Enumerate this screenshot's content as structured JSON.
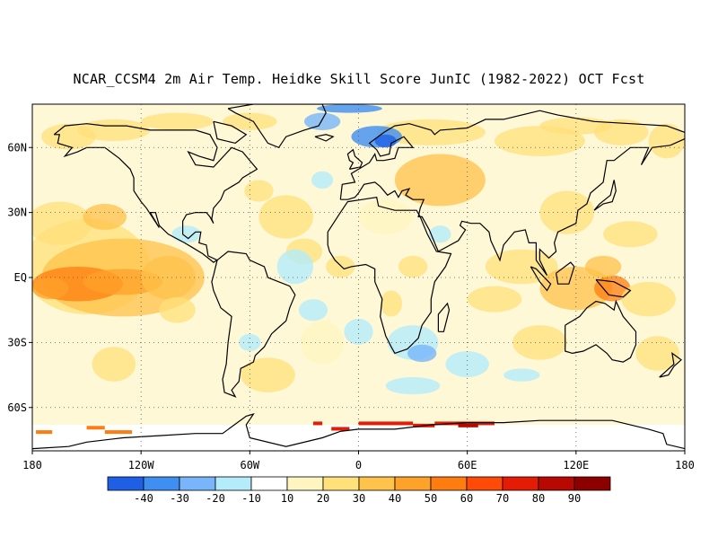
{
  "title": "NCAR_CCSM4 2m Air Temp. Heidke Skill Score JunIC (1982-2022) OCT Fcst",
  "map": {
    "lat_labels": [
      "60N",
      "30N",
      "EQ",
      "30S",
      "60S"
    ],
    "lat_values": [
      60,
      30,
      0,
      -30,
      -60
    ],
    "lon_labels": [
      "180",
      "120W",
      "60W",
      "0",
      "60E",
      "120E",
      "180"
    ],
    "lon_values": [
      -180,
      -120,
      -60,
      0,
      60,
      120,
      180
    ],
    "lat_range": [
      -80,
      80
    ],
    "lon_range": [
      -180,
      180
    ],
    "gridlines": "dotted"
  },
  "colorbar": {
    "colors": [
      "#1f5fe6",
      "#3f8ff2",
      "#78b5fa",
      "#b4ecfb",
      "#ffffff",
      "#fff5c0",
      "#ffe07a",
      "#ffc24a",
      "#ffa22a",
      "#ff7d10",
      "#ff4a08",
      "#e41c05",
      "#b80802",
      "#8c0000"
    ],
    "labels": [
      "-40",
      "-30",
      "-20",
      "-10",
      "10",
      "20",
      "30",
      "40",
      "50",
      "60",
      "70",
      "80",
      "90"
    ]
  }
}
